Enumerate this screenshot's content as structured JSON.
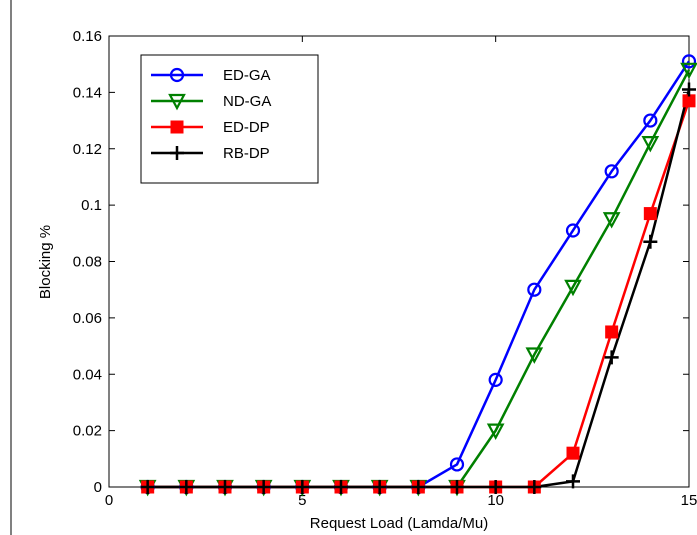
{
  "chart_data": {
    "type": "line",
    "xlabel": "Request Load (Lamda/Mu)",
    "ylabel": "Blocking %",
    "xlim": [
      0,
      15
    ],
    "ylim": [
      0,
      0.16
    ],
    "x_ticks": [
      "0",
      "5",
      "10",
      "15"
    ],
    "y_ticks": [
      "0",
      "0.02",
      "0.04",
      "0.06",
      "0.08",
      "0.1",
      "0.12",
      "0.14",
      "0.16"
    ],
    "grid": false,
    "legend_position": "top-left",
    "x": [
      1,
      2,
      3,
      4,
      5,
      6,
      7,
      8,
      9,
      10,
      11,
      12,
      13,
      14,
      15
    ],
    "series": [
      {
        "name": "ED-GA",
        "color": "#0000ff",
        "marker": "circle",
        "values": [
          0,
          0,
          0,
          0,
          0,
          0,
          0,
          0,
          0.008,
          0.038,
          0.07,
          0.091,
          0.112,
          0.13,
          0.151
        ]
      },
      {
        "name": "ND-GA",
        "color": "#008000",
        "marker": "triangle-down",
        "values": [
          0,
          0,
          0,
          0,
          0,
          0,
          0,
          0,
          0,
          0.02,
          0.047,
          0.071,
          0.095,
          0.122,
          0.148
        ]
      },
      {
        "name": "ED-DP",
        "color": "#ff0000",
        "marker": "square",
        "values": [
          0,
          0,
          0,
          0,
          0,
          0,
          0,
          0,
          0,
          0,
          0,
          0.012,
          0.055,
          0.097,
          0.137
        ]
      },
      {
        "name": "RB-DP",
        "color": "#000000",
        "marker": "plus",
        "values": [
          0,
          0,
          0,
          0,
          0,
          0,
          0,
          0,
          0,
          0,
          0,
          0.002,
          0.046,
          0.087,
          0.141
        ]
      }
    ]
  }
}
